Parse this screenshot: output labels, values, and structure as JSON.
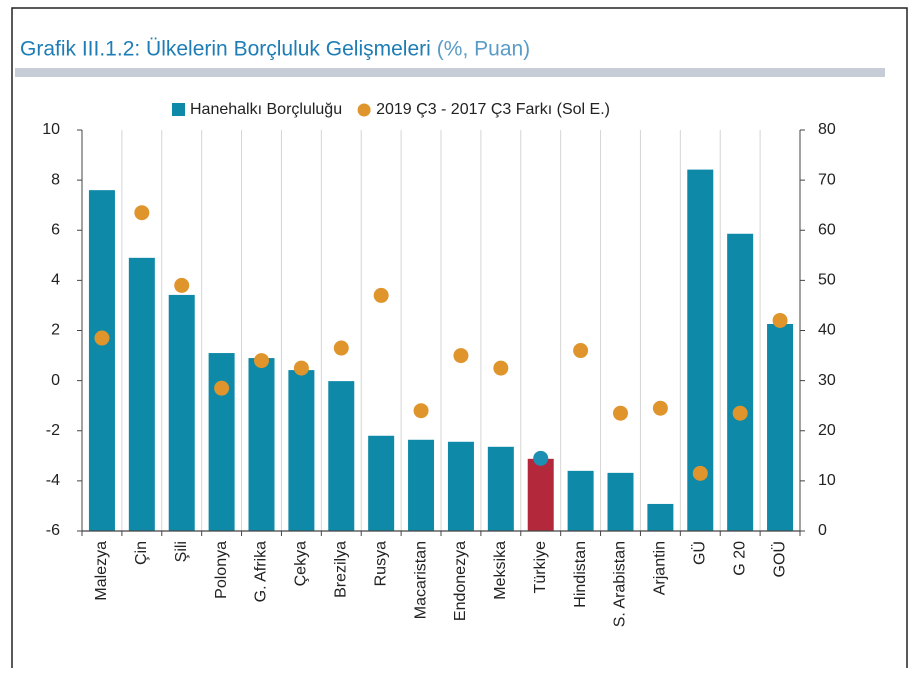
{
  "chart_data": {
    "type": "bar_dot",
    "title": "Grafik III.1.2: Ülkelerin Borçluluk Gelişmeleri",
    "title_unit": "(%, Puan)",
    "categories": [
      "Malezya",
      "Çin",
      "Şili",
      "Polonya",
      "G. Afrika",
      "Çekya",
      "Brezilya",
      "Rusya",
      "Macaristan",
      "Endonezya",
      "Meksika",
      "Türkiye",
      "Hindistan",
      "S. Arabistan",
      "Arjantin",
      "GÜ",
      "G 20",
      "GOÜ"
    ],
    "series": [
      {
        "name": "Hanehalkı Borçluluğu",
        "kind": "bar",
        "axis": "y2",
        "color": "#0e89a8",
        "colors": [
          "#0e89a8",
          "#0e89a8",
          "#0e89a8",
          "#0e89a8",
          "#0e89a8",
          "#0e89a8",
          "#0e89a8",
          "#0e89a8",
          "#0e89a8",
          "#0e89a8",
          "#0e89a8",
          "#b3283a",
          "#0e89a8",
          "#0e89a8",
          "#0e89a8",
          "#0e89a8",
          "#0e89a8",
          "#0e89a8"
        ],
        "values": [
          68.0,
          54.5,
          47.1,
          35.5,
          34.5,
          32.1,
          29.9,
          19.0,
          18.2,
          17.8,
          16.8,
          14.4,
          12.0,
          11.6,
          5.4,
          72.1,
          59.3,
          41.3
        ]
      },
      {
        "name": "2019 Ç3 - 2017 Ç3 Farkı (Sol E.)",
        "kind": "dot",
        "axis": "y",
        "color": "#df952c",
        "colors": [
          "#df952c",
          "#df952c",
          "#df952c",
          "#df952c",
          "#df952c",
          "#df952c",
          "#df952c",
          "#df952c",
          "#df952c",
          "#df952c",
          "#df952c",
          "#1c8fb3",
          "#df952c",
          "#df952c",
          "#df952c",
          "#df952c",
          "#df952c",
          "#df952c"
        ],
        "values": [
          1.7,
          6.7,
          3.8,
          -0.3,
          0.8,
          0.5,
          1.3,
          3.4,
          -1.2,
          1.0,
          0.5,
          -3.1,
          1.2,
          -1.3,
          -1.1,
          -3.7,
          -1.3,
          2.4
        ]
      }
    ],
    "ylim": [
      -6,
      10
    ],
    "yticks": [
      -6,
      -4,
      -2,
      0,
      2,
      4,
      6,
      8,
      10
    ],
    "y2lim": [
      0,
      80
    ],
    "y2ticks": [
      0,
      10,
      20,
      30,
      40,
      50,
      60,
      70,
      80
    ],
    "grid": true,
    "legend": "top"
  }
}
